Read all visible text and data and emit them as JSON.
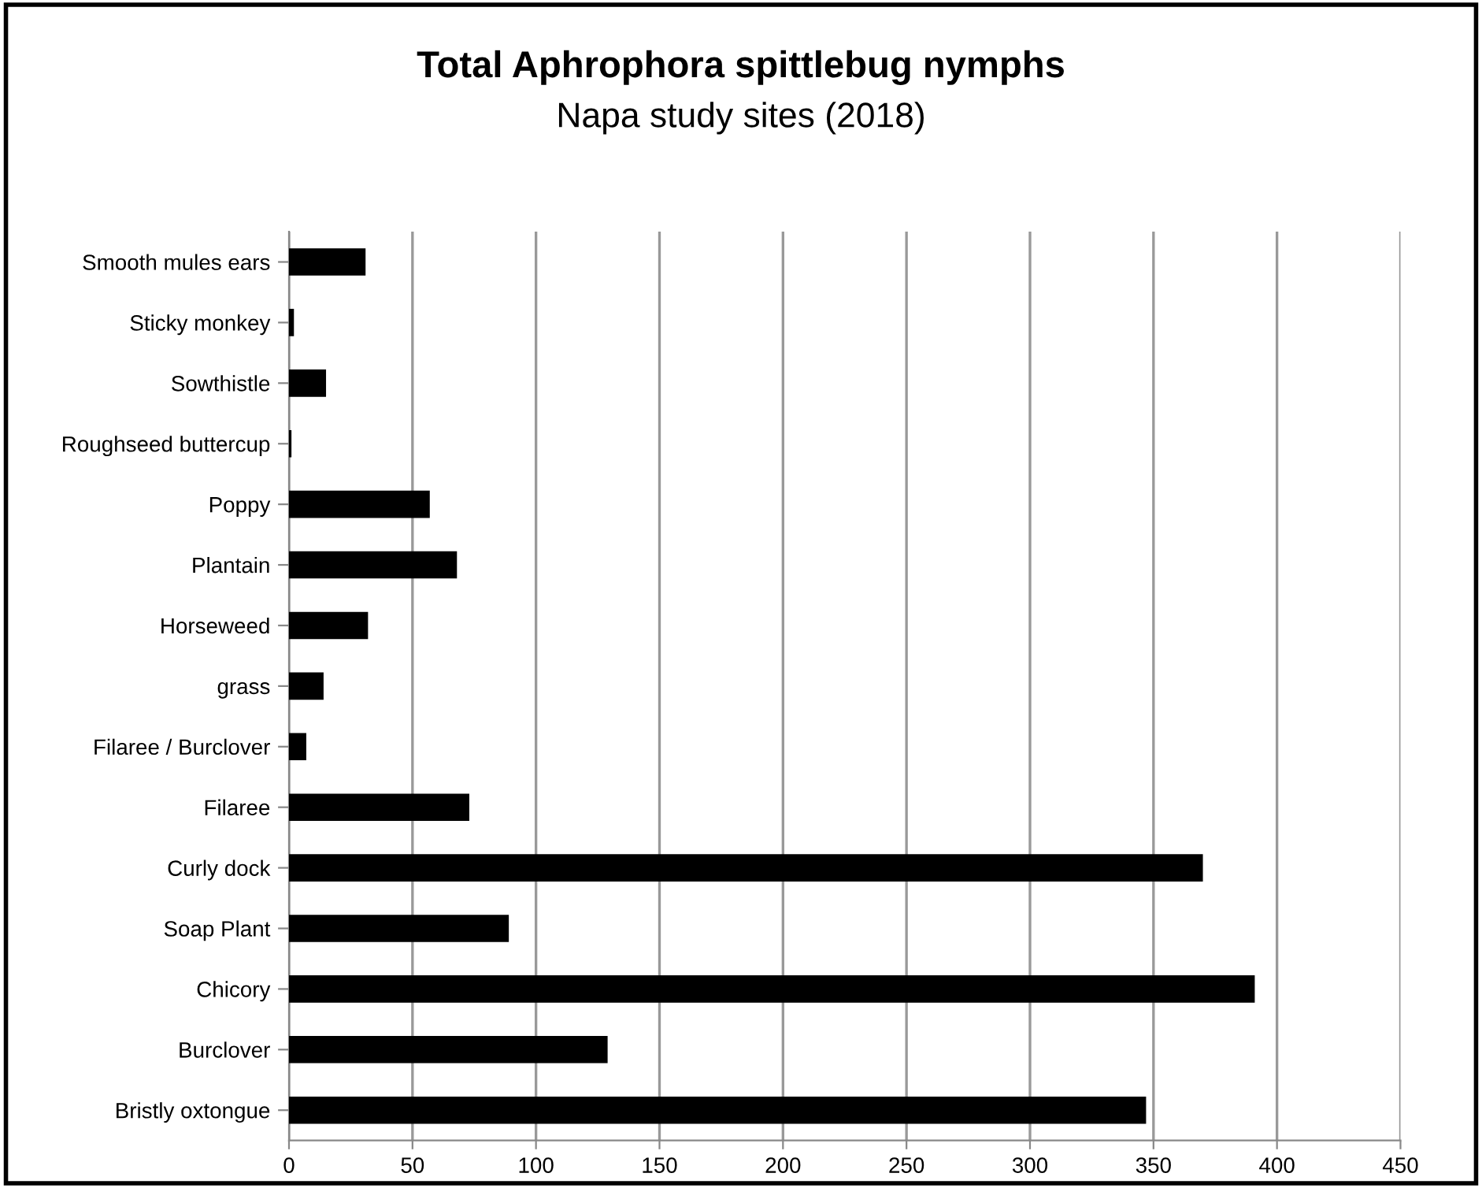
{
  "chart_data": {
    "type": "bar",
    "orientation": "horizontal",
    "title": "Total Aphrophora spittlebug nymphs",
    "subtitle": "Napa study sites (2018)",
    "categories": [
      "Smooth mules ears",
      "Sticky monkey",
      "Sowthistle",
      "Roughseed buttercup",
      "Poppy",
      "Plantain",
      "Horseweed",
      "grass",
      "Filaree / Burclover",
      "Filaree",
      "Curly dock",
      "Soap Plant",
      "Chicory",
      "Burclover",
      "Bristly oxtongue"
    ],
    "values": [
      31,
      2,
      15,
      1,
      57,
      68,
      32,
      14,
      7,
      73,
      370,
      89,
      391,
      129,
      347
    ],
    "color": "#000000",
    "xlim": [
      0,
      450
    ],
    "xticks": [
      0,
      50,
      100,
      150,
      200,
      250,
      300,
      350,
      400,
      450
    ],
    "grid": "x",
    "legend": false
  }
}
